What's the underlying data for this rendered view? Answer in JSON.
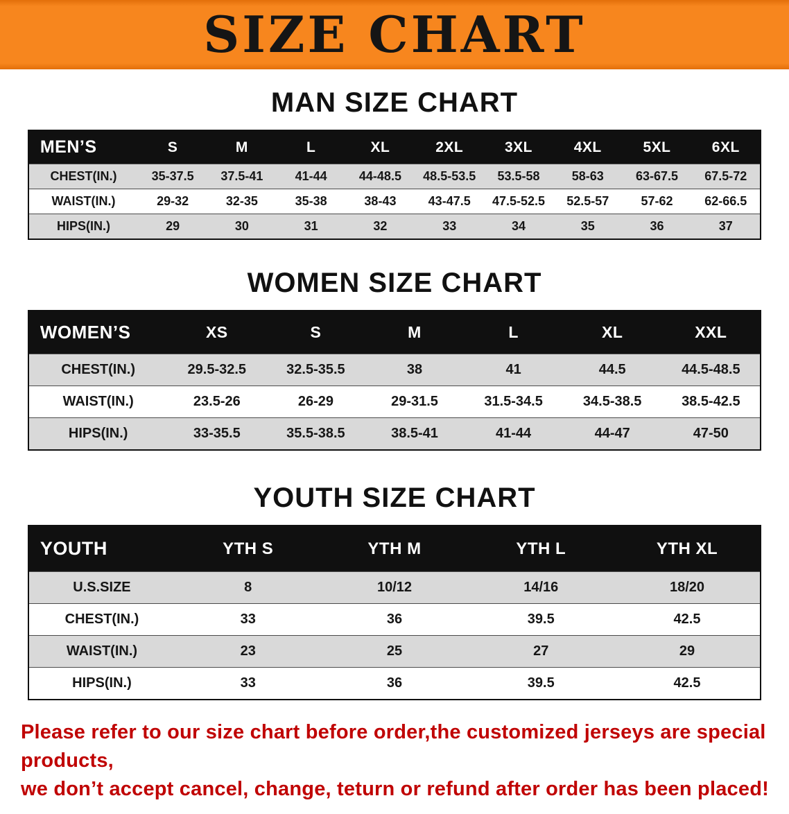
{
  "banner": {
    "title": "SIZE CHART"
  },
  "colors": {
    "banner_bg": "#f7861e",
    "header_bg": "#101010",
    "row_alt_bg": "#d9d9d9",
    "disclaimer_text": "#c00303"
  },
  "sections": [
    {
      "heading": "MAN SIZE CHART",
      "table": {
        "header": [
          "MEN’S",
          "S",
          "M",
          "L",
          "XL",
          "2XL",
          "3XL",
          "4XL",
          "5XL",
          "6XL"
        ],
        "rows": [
          {
            "label": "CHEST(IN.)",
            "values": [
              "35-37.5",
              "37.5-41",
              "41-44",
              "44-48.5",
              "48.5-53.5",
              "53.5-58",
              "58-63",
              "63-67.5",
              "67.5-72"
            ]
          },
          {
            "label": "WAIST(IN.)",
            "values": [
              "29-32",
              "32-35",
              "35-38",
              "38-43",
              "43-47.5",
              "47.5-52.5",
              "52.5-57",
              "57-62",
              "62-66.5"
            ]
          },
          {
            "label": "HIPS(IN.)",
            "values": [
              "29",
              "30",
              "31",
              "32",
              "33",
              "34",
              "35",
              "36",
              "37"
            ]
          }
        ]
      }
    },
    {
      "heading": "WOMEN SIZE CHART",
      "table": {
        "header": [
          "WOMEN’S",
          "XS",
          "S",
          "M",
          "L",
          "XL",
          "XXL"
        ],
        "rows": [
          {
            "label": "CHEST(IN.)",
            "values": [
              "29.5-32.5",
              "32.5-35.5",
              "38",
              "41",
              "44.5",
              "44.5-48.5"
            ]
          },
          {
            "label": "WAIST(IN.)",
            "values": [
              "23.5-26",
              "26-29",
              "29-31.5",
              "31.5-34.5",
              "34.5-38.5",
              "38.5-42.5"
            ]
          },
          {
            "label": "HIPS(IN.)",
            "values": [
              "33-35.5",
              "35.5-38.5",
              "38.5-41",
              "41-44",
              "44-47",
              "47-50"
            ]
          }
        ]
      }
    },
    {
      "heading": "YOUTH SIZE CHART",
      "table": {
        "header": [
          "YOUTH",
          "YTH S",
          "YTH M",
          "YTH L",
          "YTH XL"
        ],
        "rows": [
          {
            "label": "U.S.SIZE",
            "values": [
              "8",
              "10/12",
              "14/16",
              "18/20"
            ]
          },
          {
            "label": "CHEST(IN.)",
            "values": [
              "33",
              "36",
              "39.5",
              "42.5"
            ]
          },
          {
            "label": "WAIST(IN.)",
            "values": [
              "23",
              "25",
              "27",
              "29"
            ]
          },
          {
            "label": "HIPS(IN.)",
            "values": [
              "33",
              "36",
              "39.5",
              "42.5"
            ]
          }
        ]
      }
    }
  ],
  "disclaimer": {
    "line1": "Please refer to our size chart before order,the customized jerseys are special products,",
    "line2": "we don’t accept cancel, change, teturn or refund after order has been placed!"
  }
}
